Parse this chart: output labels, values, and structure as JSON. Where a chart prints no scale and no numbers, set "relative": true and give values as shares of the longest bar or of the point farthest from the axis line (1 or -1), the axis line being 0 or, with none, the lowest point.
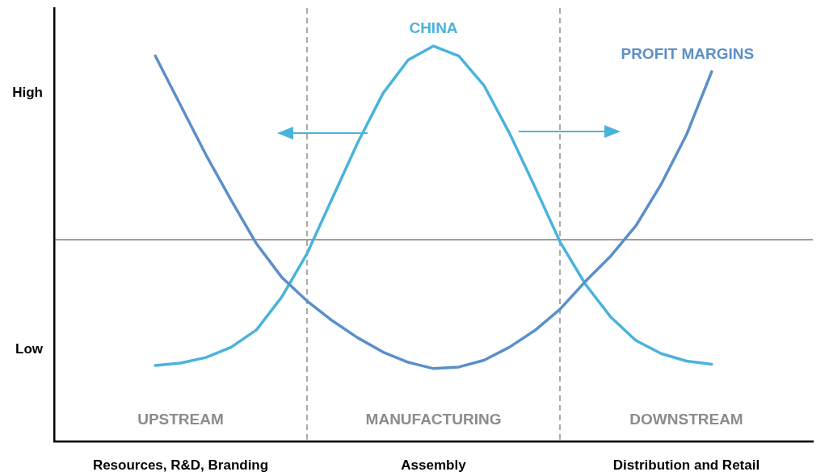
{
  "chart_data": {
    "type": "line",
    "relative": true,
    "categories": [
      null,
      null,
      null,
      null,
      null,
      "Resources, R&D, Branding",
      null,
      null,
      null,
      null,
      null,
      null,
      null,
      null,
      null,
      "Assembly",
      null,
      null,
      null,
      null,
      null,
      null,
      null,
      null,
      null,
      "Distribution and Retail",
      null,
      null,
      null,
      null,
      null
    ],
    "series": [
      {
        "name": "PROFIT MARGINS",
        "color": "#5b8fc9",
        "values": [
          null,
          null,
          null,
          null,
          0.975,
          0.85,
          0.725,
          0.61,
          0.5,
          0.415,
          0.355,
          0.305,
          0.262,
          0.226,
          0.2,
          0.184,
          0.188,
          0.205,
          0.238,
          0.28,
          0.334,
          0.404,
          0.468,
          0.545,
          0.65,
          0.775,
          0.935,
          null,
          null,
          null,
          null
        ]
      },
      {
        "name": "CHINA",
        "color": "#4ab3dc",
        "values": [
          null,
          null,
          null,
          null,
          0.192,
          0.198,
          0.212,
          0.238,
          0.282,
          0.365,
          0.475,
          0.615,
          0.755,
          0.88,
          0.965,
          1.0,
          0.975,
          0.9,
          0.78,
          0.645,
          0.505,
          0.398,
          0.315,
          0.255,
          0.222,
          0.203,
          0.195,
          null,
          null,
          null,
          null
        ]
      }
    ],
    "ref_lines": [
      {
        "axis": "y",
        "value": 0.51,
        "color": "#333333",
        "line_style": "solid"
      }
    ],
    "annotations": [
      "High",
      "Low",
      "UPSTREAM",
      "MANUFACTURING",
      "DOWNSTREAM"
    ],
    "legend": false,
    "marker": "none",
    "line_style": "solid"
  }
}
